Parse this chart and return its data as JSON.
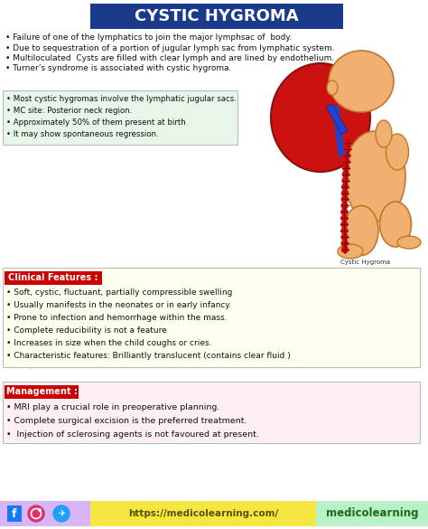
{
  "title": "CYSTIC HYGROMA",
  "title_bg": "#1a3a8c",
  "title_color": "#ffffff",
  "bg_color": "#ffffff",
  "section1_bullets": [
    "Failure of one of the lymphatics to join the major lymphsac of  body.",
    "Due to sequestration of a portion of jugular lymph sac from lymphatic system.",
    "Multiloculated  Cysts are filled with clear lymph and are lined by endothelium.",
    "Turner’s syndrome is associated with cystic hygroma."
  ],
  "section2_bg": "#e8f5e9",
  "section2_border": "#bbbbbb",
  "section2_bullets": [
    "Most cystic hygromas involve the lymphatic jugular sacs.",
    "MC site: Posterior neck region.",
    "Approximately 50% of them present at birth",
    "It may show spontaneous regression."
  ],
  "clinical_label": "Clinical Features :",
  "clinical_label_bg": "#cc0000",
  "clinical_label_color": "#ffffff",
  "clinical_bg": "#fffff0",
  "clinical_border": "#bbbbbb",
  "clinical_bullets": [
    "Soft, cystic, fluctuant, partially compressible swelling",
    "Usually manifests in the neonates or in early infancy.",
    "Prone to infection and hemorrhage within the mass.",
    "Complete reducibility is not a feature",
    "Increases in size when the child coughs or cries.",
    "Characteristic features: Brilliantly translucent (contains clear fluid )"
  ],
  "mgmt_label": "Management :",
  "mgmt_label_bg": "#cc0000",
  "mgmt_label_color": "#ffffff",
  "mgmt_bg": "#fff0f5",
  "mgmt_border": "#bbbbbb",
  "mgmt_bullets": [
    "MRI play a crucial role in preoperative planning.",
    "Complete surgical excision is the preferred treatment.",
    " Injection of sclerosing agents is not favoured at present."
  ],
  "footer_left_bg": "#d8b4f8",
  "footer_mid_bg": "#f5e642",
  "footer_right_bg": "#b8f0c8",
  "footer_url": "https://medicolearning.com/",
  "footer_brand": "medicolearning",
  "watermark": "medicolearning",
  "baby_skin": "#f0b070",
  "baby_skin_dark": "#c07828",
  "hygroma_color": "#cc1111",
  "hygroma_dark": "#881111",
  "vein_color": "#2244cc",
  "spine_dot_color": "#cc1111"
}
